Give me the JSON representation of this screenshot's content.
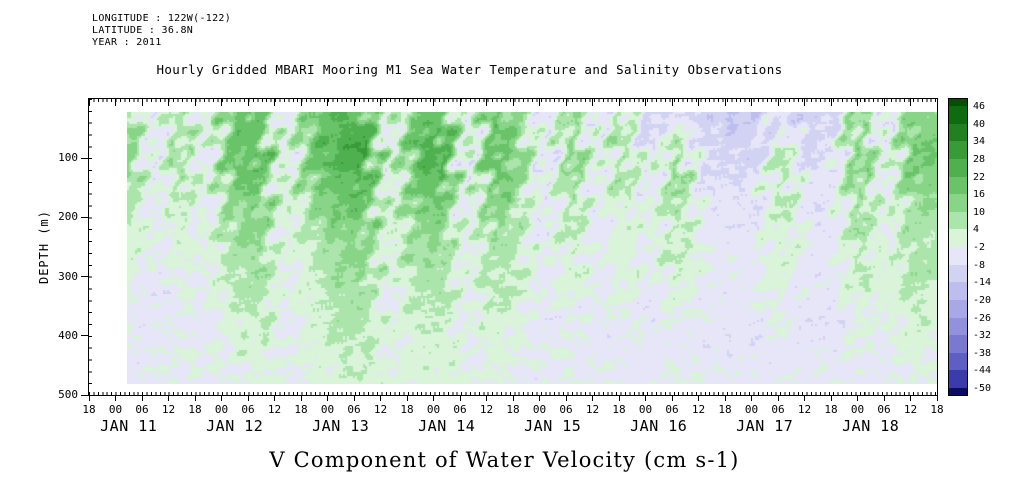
{
  "header": {
    "line1": "LONGITUDE : 122W(-122)",
    "line2": "LATITUDE : 36.8N",
    "line3": "YEAR : 2011"
  },
  "title": "Hourly Gridded MBARI Mooring M1 Sea Water Temperature and Salinity Observations",
  "bottom_title": "V Component of Water Velocity (cm s-1)",
  "axes": {
    "y_label": "DEPTH (m)",
    "y_tick_labels": [
      "100",
      "200",
      "300",
      "400",
      "500"
    ],
    "x_hour_labels": [
      "18",
      "00",
      "06",
      "12",
      "18",
      "00",
      "06",
      "12",
      "18",
      "00",
      "06",
      "12",
      "18",
      "00",
      "06",
      "12",
      "18",
      "00",
      "06",
      "12",
      "18",
      "00",
      "06",
      "12",
      "18",
      "00",
      "06",
      "12",
      "18",
      "00",
      "06",
      "12",
      "18"
    ],
    "x_day_labels": [
      "JAN 11",
      "JAN 12",
      "JAN 13",
      "JAN 14",
      "JAN 15",
      "JAN 16",
      "JAN 17",
      "JAN 18"
    ]
  },
  "colorbar": {
    "tick_labels": [
      "46",
      "40",
      "34",
      "28",
      "22",
      "16",
      "10",
      "4",
      "-2",
      "-8",
      "-14",
      "-20",
      "-26",
      "-32",
      "-38",
      "-44",
      "-50"
    ],
    "colors": [
      "#005000",
      "#0f6b0f",
      "#218121",
      "#379b37",
      "#4fb04f",
      "#69c369",
      "#88d588",
      "#abe5ab",
      "#d9f4d9",
      "#e6e6f8",
      "#d2d2f3",
      "#bdbdee",
      "#a8a8e7",
      "#9191dd",
      "#7979d1",
      "#5e5ec4",
      "#3b3bab",
      "#0c0c5e"
    ]
  },
  "chart_data": {
    "type": "heatmap",
    "title": "Hourly Gridded MBARI Mooring M1 Sea Water Temperature and Salinity Observations",
    "value_label": "V Component of Water Velocity (cm s-1)",
    "ylabel": "DEPTH (m)",
    "ylim_m": [
      0,
      500
    ],
    "x_start": "JAN 10 18:00 2011",
    "x_end": "JAN 18 18:00 2011",
    "x_tick_step_hours": 6,
    "value_units": "cm s-1",
    "colorbar_ticks": [
      46,
      40,
      34,
      28,
      22,
      16,
      10,
      4,
      -2,
      -8,
      -14,
      -20,
      -26,
      -32,
      -38,
      -44,
      -50
    ],
    "grid_depths_m": [
      5,
      50,
      95,
      140,
      185,
      230,
      275,
      320,
      365,
      410,
      455,
      500
    ],
    "grid_time_note": "32 columns evenly spaced from JAN 11 00:00 to JAN 18 18:00 (estimated coarse field, cm/s)",
    "values": [
      [
        10,
        -6,
        8,
        -4,
        14,
        18,
        -6,
        12,
        20,
        22,
        -4,
        16,
        20,
        -6,
        18,
        8,
        -8,
        10,
        -8,
        6,
        -12,
        -4,
        -10,
        -14,
        -14,
        -6,
        -12,
        -10,
        12,
        -8,
        14,
        10
      ],
      [
        14,
        -8,
        10,
        -6,
        18,
        22,
        -8,
        16,
        24,
        28,
        -6,
        20,
        26,
        -8,
        22,
        12,
        -10,
        14,
        -8,
        10,
        -10,
        4,
        -8,
        -12,
        -12,
        2,
        -10,
        -8,
        16,
        -8,
        18,
        14
      ],
      [
        14,
        -8,
        10,
        -6,
        18,
        22,
        -6,
        16,
        24,
        28,
        -6,
        20,
        26,
        -8,
        22,
        12,
        -8,
        14,
        -6,
        10,
        -8,
        12,
        -8,
        -8,
        -10,
        8,
        -8,
        -8,
        16,
        -6,
        18,
        14
      ],
      [
        10,
        -6,
        8,
        -6,
        14,
        18,
        -6,
        12,
        20,
        22,
        -4,
        16,
        20,
        -6,
        18,
        10,
        -8,
        10,
        -6,
        8,
        -6,
        12,
        -6,
        -6,
        -8,
        8,
        -8,
        -6,
        12,
        -6,
        14,
        12
      ],
      [
        6,
        -6,
        4,
        -4,
        10,
        14,
        -4,
        8,
        16,
        18,
        -4,
        12,
        16,
        -6,
        14,
        6,
        -6,
        8,
        -6,
        4,
        -6,
        8,
        -4,
        -6,
        -6,
        6,
        -6,
        -6,
        10,
        -4,
        10,
        8
      ],
      [
        4,
        -4,
        2,
        -4,
        8,
        12,
        -4,
        6,
        12,
        14,
        -2,
        10,
        12,
        -4,
        10,
        4,
        -6,
        6,
        -4,
        2,
        -4,
        6,
        -4,
        -4,
        -6,
        4,
        -4,
        -6,
        8,
        -4,
        8,
        6
      ],
      [
        2,
        -4,
        2,
        -2,
        6,
        10,
        -4,
        4,
        10,
        12,
        -2,
        8,
        10,
        -4,
        8,
        2,
        -4,
        4,
        -4,
        2,
        -4,
        4,
        -2,
        -4,
        -4,
        2,
        -4,
        -4,
        6,
        -4,
        8,
        4
      ],
      [
        0,
        -6,
        0,
        -4,
        4,
        8,
        -2,
        2,
        8,
        10,
        -4,
        6,
        8,
        -4,
        6,
        2,
        -4,
        2,
        -4,
        0,
        -6,
        2,
        -4,
        -4,
        -4,
        0,
        -6,
        -4,
        4,
        -2,
        6,
        2
      ],
      [
        -2,
        -6,
        -2,
        -4,
        2,
        6,
        -4,
        0,
        6,
        8,
        -4,
        4,
        6,
        -6,
        4,
        0,
        -6,
        0,
        -4,
        -2,
        -6,
        0,
        -4,
        -6,
        -4,
        -2,
        -6,
        -6,
        2,
        -4,
        4,
        2
      ],
      [
        -2,
        -4,
        -2,
        -4,
        0,
        4,
        -4,
        0,
        4,
        6,
        -2,
        2,
        4,
        -4,
        2,
        -2,
        -6,
        -2,
        -6,
        -2,
        -4,
        -2,
        -6,
        -6,
        -6,
        -2,
        -4,
        -6,
        0,
        -4,
        2,
        0
      ],
      [
        -4,
        -4,
        -2,
        -2,
        -2,
        2,
        -2,
        -2,
        2,
        4,
        -2,
        2,
        2,
        -4,
        0,
        -2,
        -4,
        -2,
        -4,
        -4,
        -4,
        -2,
        -4,
        -4,
        -6,
        -4,
        -4,
        -4,
        -2,
        -4,
        0,
        -2
      ],
      [
        -4,
        -2,
        -4,
        -2,
        -2,
        0,
        -2,
        -2,
        2,
        2,
        -2,
        0,
        0,
        -2,
        0,
        -2,
        -4,
        -2,
        -2,
        -4,
        -4,
        -2,
        -2,
        -4,
        -4,
        -4,
        -2,
        -4,
        -2,
        -2,
        -2,
        -2
      ]
    ]
  }
}
